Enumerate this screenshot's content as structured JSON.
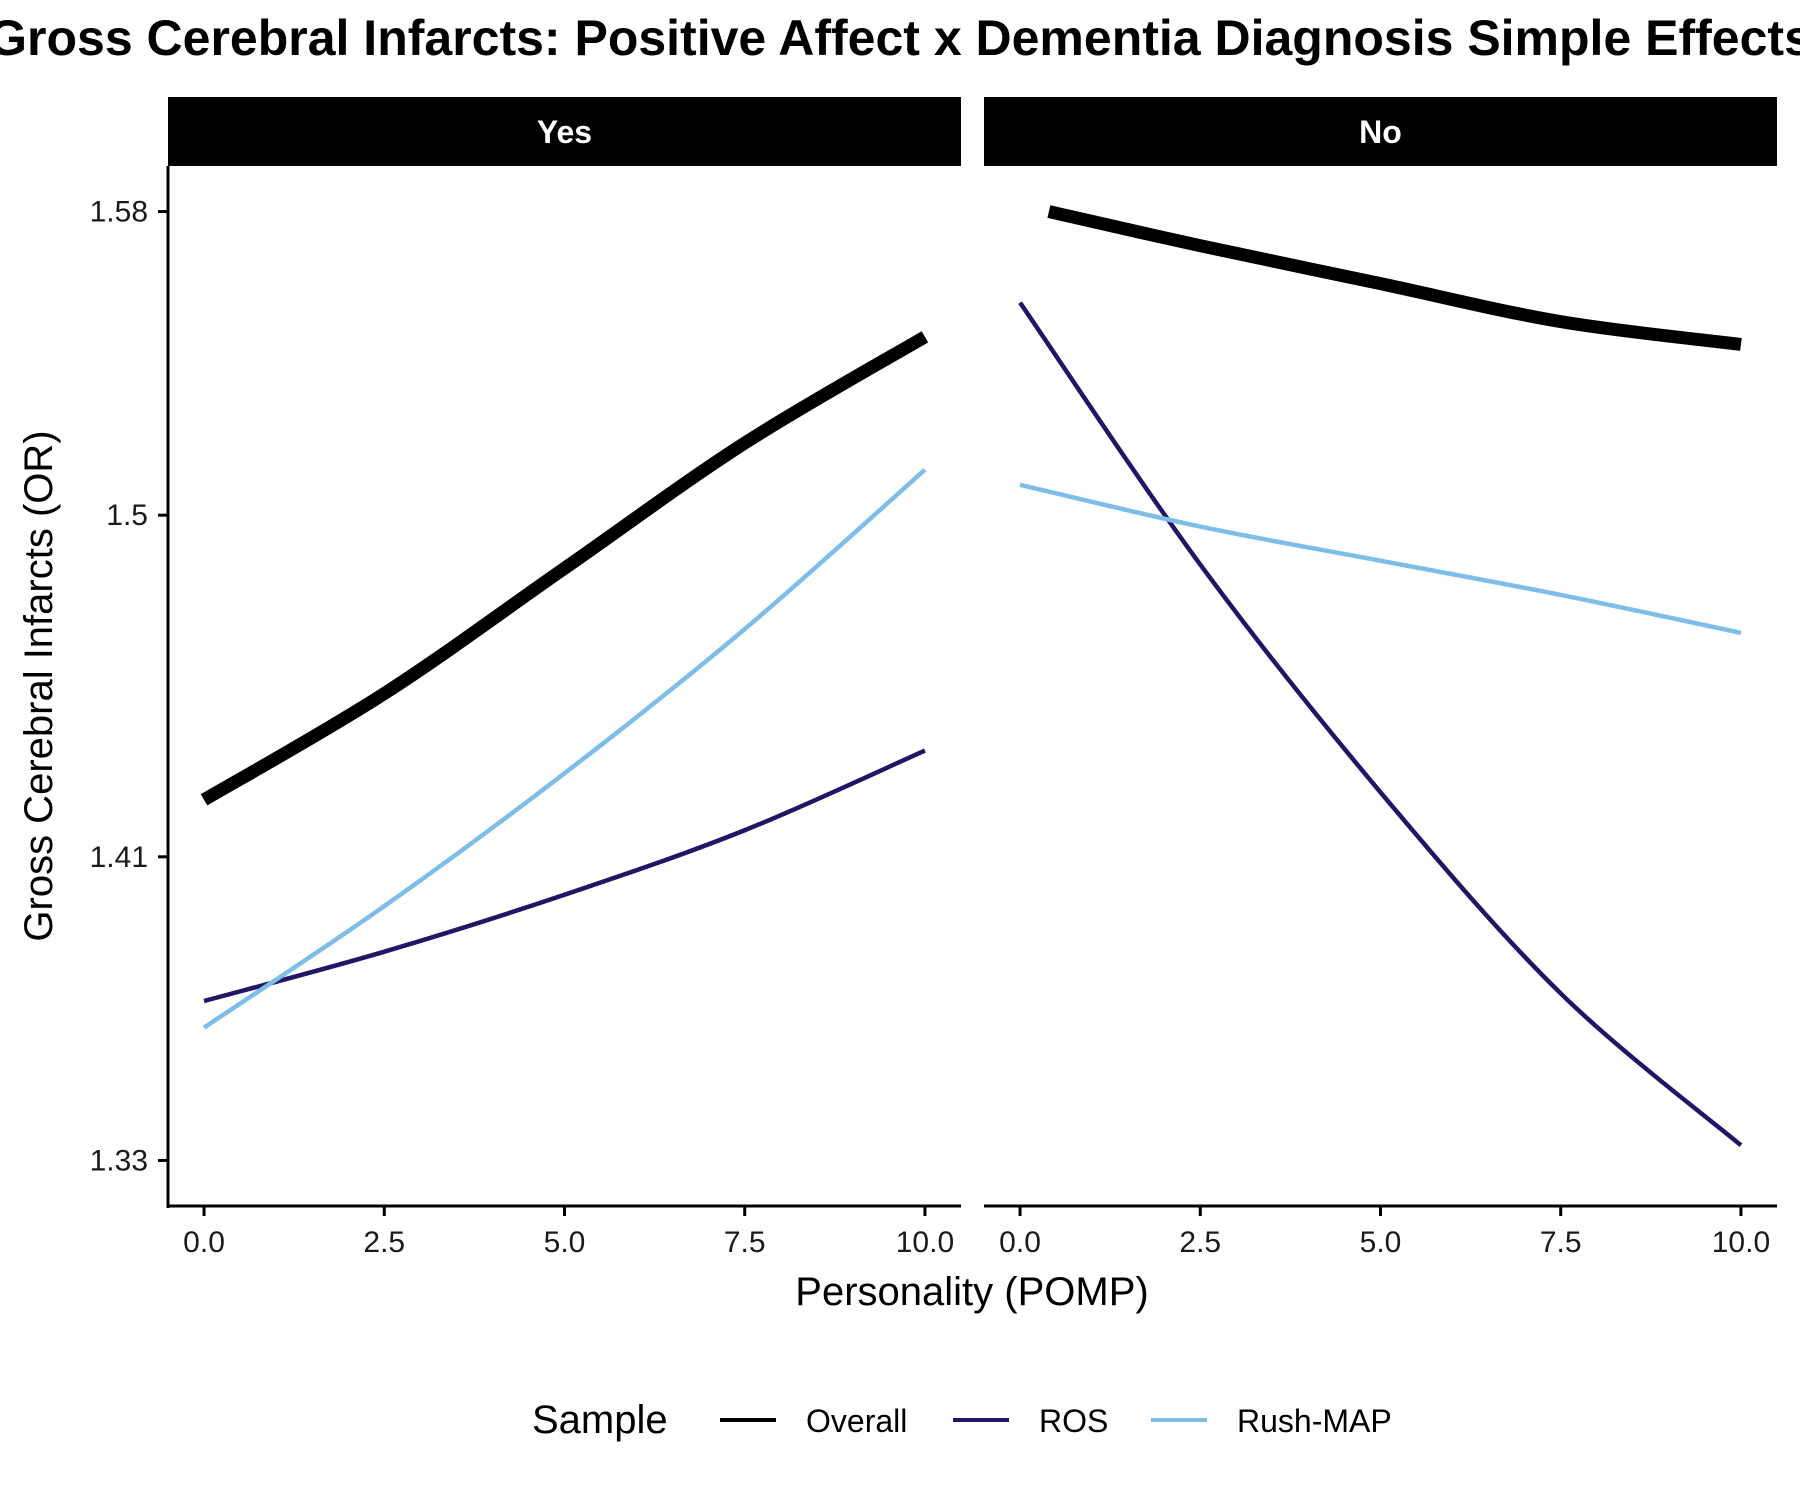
{
  "chart_data": {
    "type": "line",
    "title": "Gross Cerebral Infarcts: Positive Affect x Dementia Diagnosis Simple Effects",
    "xlabel": "Personality (POMP)",
    "ylabel": "Gross Cerebral Infarcts (OR)",
    "ylim": [
      1.318,
      1.592
    ],
    "xlim": [
      -0.5,
      10.5
    ],
    "x_ticks": [
      "0.0",
      "2.5",
      "5.0",
      "7.5",
      "10.0"
    ],
    "y_ticks": [
      "1.33",
      "1.41",
      "1.5",
      "1.58"
    ],
    "y_tick_values": [
      1.33,
      1.41,
      1.5,
      1.58
    ],
    "grid": false,
    "legend": {
      "title": "Sample",
      "position": "bottom",
      "entries": [
        "Overall",
        "ROS",
        "Rush-MAP"
      ]
    },
    "colors": {
      "Overall": "#000000",
      "ROS": "#231466",
      "Rush-MAP": "#7dbde8",
      "strip_bg": "#000000",
      "strip_text": "#ffffff"
    },
    "panels": [
      {
        "label": "Yes",
        "x": [
          0,
          2.5,
          5,
          7.5,
          10
        ],
        "series": [
          {
            "name": "Overall",
            "values": [
              1.425,
              1.453,
              1.486,
              1.519,
              1.547
            ]
          },
          {
            "name": "ROS",
            "values": [
              1.372,
              1.385,
              1.4,
              1.417,
              1.438
            ]
          },
          {
            "name": "Rush-MAP",
            "values": [
              1.365,
              1.397,
              1.432,
              1.47,
              1.512
            ]
          }
        ]
      },
      {
        "label": "No",
        "x": [
          0,
          2.5,
          5,
          7.5,
          10
        ],
        "series": [
          {
            "name": "Overall",
            "values": [
              1.58,
              1.571,
              1.561,
              1.551,
              1.545
            ]
          },
          {
            "name": "ROS",
            "values": [
              1.556,
              1.487,
              1.427,
              1.374,
              1.334
            ]
          },
          {
            "name": "Rush-MAP",
            "values": [
              1.508,
              1.497,
              1.488,
              1.479,
              1.469
            ]
          }
        ],
        "series_x_start": {
          "Overall": 0.4
        }
      }
    ]
  }
}
